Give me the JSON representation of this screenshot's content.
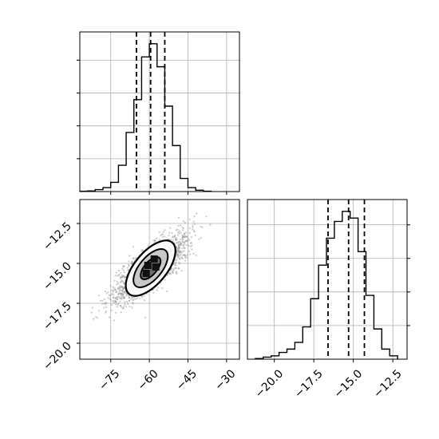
{
  "chart_data": [
    {
      "type": "histogram",
      "panel": "marginal-x",
      "xlim": [
        -87,
        -25
      ],
      "bin_edges": [
        -87,
        -84,
        -81,
        -78,
        -75,
        -72,
        -69,
        -66,
        -63,
        -60,
        -57,
        -54,
        -51,
        -48,
        -45,
        -42,
        -39,
        -36
      ],
      "counts": [
        0.5,
        1,
        3,
        6,
        14,
        40,
        90,
        140,
        205,
        225,
        190,
        130,
        70,
        20,
        6,
        2,
        0.5
      ],
      "quantile_lines": [
        -65,
        -59.5,
        -54
      ],
      "grid": true,
      "x_ticks_labeled": false
    },
    {
      "type": "scatter",
      "panel": "joint",
      "xlim": [
        -87,
        -25
      ],
      "ylim": [
        -21,
        -11
      ],
      "x_ticks": [
        -75,
        -60,
        -45,
        -30
      ],
      "x_tick_labels": [
        "−75",
        "−60",
        "−45",
        "−30"
      ],
      "y_ticks": [
        -20.0,
        -17.5,
        -15.0,
        -12.5
      ],
      "y_tick_labels": [
        "−20.0",
        "−17.5",
        "−15.0",
        "−12.5"
      ],
      "center": [
        -59.5,
        -15.3
      ],
      "contour_levels": 3,
      "grid": true
    },
    {
      "type": "histogram",
      "panel": "marginal-y",
      "xlim": [
        -21.7,
        -11.6
      ],
      "x_ticks": [
        -20.0,
        -17.5,
        -15.0,
        -12.5
      ],
      "x_tick_labels": [
        "−20.0",
        "−17.5",
        "−15.0",
        "−12.5"
      ],
      "bin_edges": [
        -21.2,
        -20.7,
        -20.2,
        -19.7,
        -19.2,
        -18.7,
        -18.2,
        -17.7,
        -17.2,
        -16.7,
        -16.2,
        -15.7,
        -15.2,
        -14.7,
        -14.2,
        -13.7,
        -13.2,
        -12.7,
        -12.2
      ],
      "counts": [
        1,
        3,
        5,
        10,
        15,
        25,
        48,
        90,
        140,
        180,
        205,
        220,
        210,
        160,
        95,
        45,
        15,
        5
      ],
      "quantile_lines": [
        -16.6,
        -15.3,
        -14.3
      ],
      "grid": true
    }
  ]
}
